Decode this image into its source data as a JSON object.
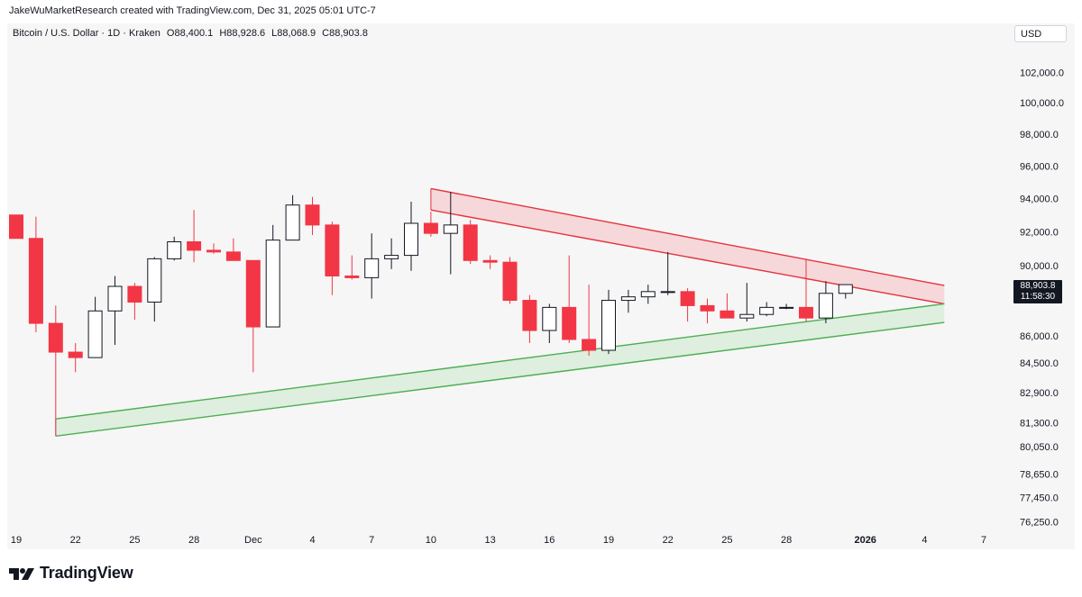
{
  "header": {
    "credit": "JakeWuMarketResearch created with TradingView.com, Dec 31, 2025 05:01 UTC-7"
  },
  "legend": {
    "symbol": "Bitcoin / U.S. Dollar · 1D · Kraken",
    "open": "O88,400.1",
    "high": "H88,928.6",
    "low": "L88,068.9",
    "close": "C88,903.8"
  },
  "currency": "USD",
  "price_tag": {
    "price": "88,903.8",
    "countdown": "11:58:30"
  },
  "footer": {
    "brand": "TradingView"
  },
  "colors": {
    "up_fill": "#ffffff",
    "up_border": "#131722",
    "down_fill": "#f23645",
    "down_border": "#f23645",
    "resistance": "#e5323e",
    "resistance_fill": "#f7c5c8",
    "support": "#4caf50",
    "support_fill": "#cfe9d0"
  },
  "chart_data": {
    "type": "candlestick",
    "title": "Bitcoin / U.S. Dollar · 1D · Kraken",
    "x_tick_labels": [
      "19",
      "22",
      "25",
      "28",
      "Dec",
      "4",
      "7",
      "10",
      "13",
      "16",
      "19",
      "22",
      "25",
      "28",
      "2026",
      "4",
      "7"
    ],
    "x_tick_days": [
      0,
      3,
      6,
      9,
      12,
      15,
      18,
      21,
      24,
      27,
      30,
      33,
      36,
      39,
      43,
      46,
      49
    ],
    "y_tick_labels": [
      "102,000.0",
      "100,000.0",
      "98,000.0",
      "96,000.0",
      "94,000.0",
      "92,000.0",
      "90,000.0",
      "86,000.0",
      "84,500.0",
      "82,900.0",
      "81,300.0",
      "80,050.0",
      "78,650.0",
      "77,450.0",
      "76,250.0"
    ],
    "y_tick_values": [
      102000,
      100000,
      98000,
      96000,
      94000,
      92000,
      90000,
      86000,
      84500,
      82900,
      81300,
      80050,
      78650,
      77450,
      76250
    ],
    "yscale": "log",
    "candles": [
      {
        "day": 0,
        "o": 93000,
        "h": 93000,
        "l": 91600,
        "c": 91600
      },
      {
        "day": 1,
        "o": 91600,
        "h": 92900,
        "l": 86200,
        "c": 86700
      },
      {
        "day": 2,
        "o": 86700,
        "h": 87700,
        "l": 80600,
        "c": 85100
      },
      {
        "day": 3,
        "o": 85100,
        "h": 85600,
        "l": 84000,
        "c": 84800
      },
      {
        "day": 4,
        "o": 84800,
        "h": 88200,
        "l": 84800,
        "c": 87400
      },
      {
        "day": 5,
        "o": 87400,
        "h": 89400,
        "l": 85500,
        "c": 88800
      },
      {
        "day": 6,
        "o": 88800,
        "h": 89000,
        "l": 86900,
        "c": 87900
      },
      {
        "day": 7,
        "o": 87900,
        "h": 90500,
        "l": 86800,
        "c": 90400
      },
      {
        "day": 8,
        "o": 90400,
        "h": 91700,
        "l": 90300,
        "c": 91400
      },
      {
        "day": 9,
        "o": 91400,
        "h": 93300,
        "l": 90200,
        "c": 90900
      },
      {
        "day": 10,
        "o": 90900,
        "h": 91300,
        "l": 90700,
        "c": 90800
      },
      {
        "day": 11,
        "o": 90800,
        "h": 91600,
        "l": 90300,
        "c": 90300
      },
      {
        "day": 12,
        "o": 90300,
        "h": 90300,
        "l": 84000,
        "c": 86500
      },
      {
        "day": 13,
        "o": 86500,
        "h": 92400,
        "l": 86500,
        "c": 91500
      },
      {
        "day": 14,
        "o": 91500,
        "h": 94200,
        "l": 91500,
        "c": 93600
      },
      {
        "day": 15,
        "o": 93600,
        "h": 94100,
        "l": 91800,
        "c": 92400
      },
      {
        "day": 16,
        "o": 92400,
        "h": 92600,
        "l": 88300,
        "c": 89400
      },
      {
        "day": 17,
        "o": 89400,
        "h": 90600,
        "l": 89200,
        "c": 89300
      },
      {
        "day": 18,
        "o": 89300,
        "h": 91900,
        "l": 88100,
        "c": 90400
      },
      {
        "day": 19,
        "o": 90400,
        "h": 91600,
        "l": 89800,
        "c": 90600
      },
      {
        "day": 20,
        "o": 90600,
        "h": 93800,
        "l": 89700,
        "c": 92500
      },
      {
        "day": 21,
        "o": 92500,
        "h": 93200,
        "l": 91700,
        "c": 91900
      },
      {
        "day": 22,
        "o": 91900,
        "h": 94400,
        "l": 89500,
        "c": 92400
      },
      {
        "day": 23,
        "o": 92400,
        "h": 92700,
        "l": 90100,
        "c": 90300
      },
      {
        "day": 24,
        "o": 90300,
        "h": 90600,
        "l": 89800,
        "c": 90200
      },
      {
        "day": 25,
        "o": 90200,
        "h": 90500,
        "l": 87800,
        "c": 88000
      },
      {
        "day": 26,
        "o": 88000,
        "h": 88300,
        "l": 85600,
        "c": 86300
      },
      {
        "day": 27,
        "o": 86300,
        "h": 87800,
        "l": 85600,
        "c": 87600
      },
      {
        "day": 28,
        "o": 87600,
        "h": 90600,
        "l": 85600,
        "c": 85800
      },
      {
        "day": 29,
        "o": 85800,
        "h": 88900,
        "l": 84900,
        "c": 85200
      },
      {
        "day": 30,
        "o": 85200,
        "h": 88600,
        "l": 85000,
        "c": 88000
      },
      {
        "day": 31,
        "o": 88000,
        "h": 88600,
        "l": 87300,
        "c": 88200
      },
      {
        "day": 32,
        "o": 88200,
        "h": 88900,
        "l": 87800,
        "c": 88500
      },
      {
        "day": 33,
        "o": 88500,
        "h": 90800,
        "l": 88300,
        "c": 88500
      },
      {
        "day": 34,
        "o": 88500,
        "h": 88700,
        "l": 86800,
        "c": 87700
      },
      {
        "day": 35,
        "o": 87700,
        "h": 88100,
        "l": 86700,
        "c": 87400
      },
      {
        "day": 36,
        "o": 87400,
        "h": 88400,
        "l": 87000,
        "c": 87000
      },
      {
        "day": 37,
        "o": 87000,
        "h": 89000,
        "l": 86800,
        "c": 87200
      },
      {
        "day": 38,
        "o": 87200,
        "h": 87900,
        "l": 87100,
        "c": 87600
      },
      {
        "day": 39,
        "o": 87600,
        "h": 87800,
        "l": 87500,
        "c": 87600
      },
      {
        "day": 40,
        "o": 87600,
        "h": 90400,
        "l": 86800,
        "c": 87000
      },
      {
        "day": 41,
        "o": 87000,
        "h": 89100,
        "l": 86700,
        "c": 88400
      },
      {
        "day": 42,
        "o": 88400,
        "h": 88900,
        "l": 88100,
        "c": 88900
      }
    ],
    "resistance_channel": {
      "upper": [
        {
          "day": 21,
          "price": 94600
        },
        {
          "day": 47,
          "price": 88850
        }
      ],
      "lower": [
        {
          "day": 21,
          "price": 93300
        },
        {
          "day": 47,
          "price": 87800
        }
      ]
    },
    "support_channel": {
      "upper": [
        {
          "day": 2,
          "price": 81500
        },
        {
          "day": 47,
          "price": 87800
        }
      ],
      "lower": [
        {
          "day": 2,
          "price": 80600
        },
        {
          "day": 47,
          "price": 86750
        }
      ]
    }
  }
}
